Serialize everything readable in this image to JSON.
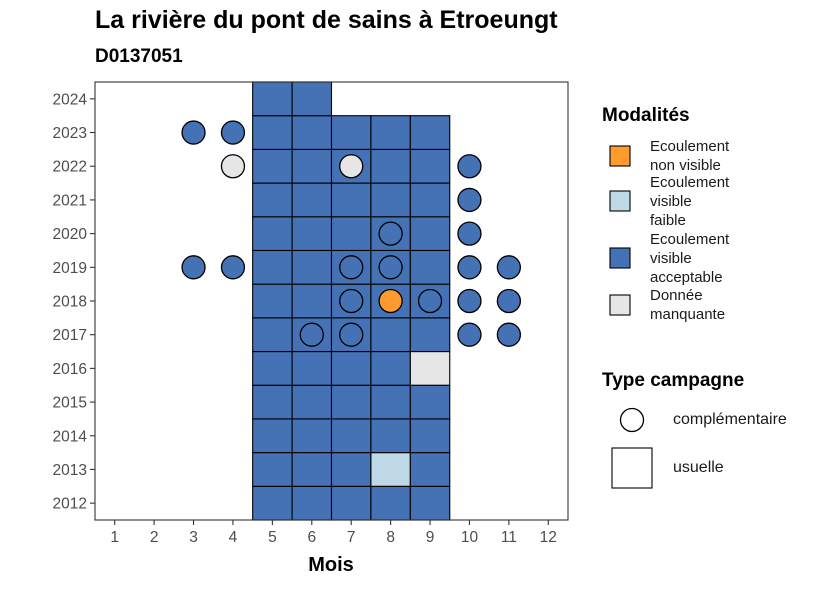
{
  "chart_data": {
    "type": "heatmap",
    "title": "La rivière du pont de sains à Etroeungt",
    "subtitle": "D0137051",
    "xlabel": "Mois",
    "ylabel": "",
    "x_ticks": [
      1,
      2,
      3,
      4,
      5,
      6,
      7,
      8,
      9,
      10,
      11,
      12
    ],
    "y_ticks": [
      2012,
      2013,
      2014,
      2015,
      2016,
      2017,
      2018,
      2019,
      2020,
      2021,
      2022,
      2023,
      2024
    ],
    "xlim": [
      0.5,
      12.5
    ],
    "ylim": [
      2011.5,
      2024.5
    ],
    "grid": false,
    "legend_placement": "right",
    "colors": {
      "non_visible": "#FE9A2E",
      "visible_faible": "#BFD8E5",
      "visible_acceptable": "#4472B4",
      "donnee_manquante": "#E6E6E6"
    },
    "legend_modalites": {
      "title": "Modalités",
      "items": [
        {
          "key": "non_visible",
          "label_lines": [
            "Ecoulement",
            "non visible"
          ]
        },
        {
          "key": "visible_faible",
          "label_lines": [
            "Ecoulement",
            "visible",
            "faible"
          ]
        },
        {
          "key": "visible_acceptable",
          "label_lines": [
            "Ecoulement",
            "visible",
            "acceptable"
          ]
        },
        {
          "key": "donnee_manquante",
          "label_lines": [
            "Donnée",
            "manquante"
          ]
        }
      ]
    },
    "legend_campagne": {
      "title": "Type campagne",
      "items": [
        {
          "shape": "circle",
          "label": "complémentaire"
        },
        {
          "shape": "square",
          "label": "usuelle"
        }
      ]
    },
    "tiles": [
      {
        "year": 2012,
        "month": 5,
        "mod": "visible_acceptable"
      },
      {
        "year": 2012,
        "month": 6,
        "mod": "visible_acceptable"
      },
      {
        "year": 2012,
        "month": 7,
        "mod": "visible_acceptable"
      },
      {
        "year": 2012,
        "month": 8,
        "mod": "visible_acceptable"
      },
      {
        "year": 2012,
        "month": 9,
        "mod": "visible_acceptable"
      },
      {
        "year": 2013,
        "month": 5,
        "mod": "visible_acceptable"
      },
      {
        "year": 2013,
        "month": 6,
        "mod": "visible_acceptable"
      },
      {
        "year": 2013,
        "month": 7,
        "mod": "visible_acceptable"
      },
      {
        "year": 2013,
        "month": 8,
        "mod": "visible_faible"
      },
      {
        "year": 2013,
        "month": 9,
        "mod": "visible_acceptable"
      },
      {
        "year": 2014,
        "month": 5,
        "mod": "visible_acceptable"
      },
      {
        "year": 2014,
        "month": 6,
        "mod": "visible_acceptable"
      },
      {
        "year": 2014,
        "month": 7,
        "mod": "visible_acceptable"
      },
      {
        "year": 2014,
        "month": 8,
        "mod": "visible_acceptable"
      },
      {
        "year": 2014,
        "month": 9,
        "mod": "visible_acceptable"
      },
      {
        "year": 2015,
        "month": 5,
        "mod": "visible_acceptable"
      },
      {
        "year": 2015,
        "month": 6,
        "mod": "visible_acceptable"
      },
      {
        "year": 2015,
        "month": 7,
        "mod": "visible_acceptable"
      },
      {
        "year": 2015,
        "month": 8,
        "mod": "visible_acceptable"
      },
      {
        "year": 2015,
        "month": 9,
        "mod": "visible_acceptable"
      },
      {
        "year": 2016,
        "month": 5,
        "mod": "visible_acceptable"
      },
      {
        "year": 2016,
        "month": 6,
        "mod": "visible_acceptable"
      },
      {
        "year": 2016,
        "month": 7,
        "mod": "visible_acceptable"
      },
      {
        "year": 2016,
        "month": 8,
        "mod": "visible_acceptable"
      },
      {
        "year": 2016,
        "month": 9,
        "mod": "donnee_manquante"
      },
      {
        "year": 2017,
        "month": 5,
        "mod": "visible_acceptable"
      },
      {
        "year": 2017,
        "month": 6,
        "mod": "visible_acceptable"
      },
      {
        "year": 2017,
        "month": 7,
        "mod": "visible_acceptable"
      },
      {
        "year": 2017,
        "month": 8,
        "mod": "visible_acceptable"
      },
      {
        "year": 2017,
        "month": 9,
        "mod": "visible_acceptable"
      },
      {
        "year": 2018,
        "month": 5,
        "mod": "visible_acceptable"
      },
      {
        "year": 2018,
        "month": 6,
        "mod": "visible_acceptable"
      },
      {
        "year": 2018,
        "month": 7,
        "mod": "visible_acceptable"
      },
      {
        "year": 2018,
        "month": 8,
        "mod": "visible_acceptable"
      },
      {
        "year": 2018,
        "month": 9,
        "mod": "visible_acceptable"
      },
      {
        "year": 2019,
        "month": 5,
        "mod": "visible_acceptable"
      },
      {
        "year": 2019,
        "month": 6,
        "mod": "visible_acceptable"
      },
      {
        "year": 2019,
        "month": 7,
        "mod": "visible_acceptable"
      },
      {
        "year": 2019,
        "month": 8,
        "mod": "visible_acceptable"
      },
      {
        "year": 2019,
        "month": 9,
        "mod": "visible_acceptable"
      },
      {
        "year": 2020,
        "month": 5,
        "mod": "visible_acceptable"
      },
      {
        "year": 2020,
        "month": 6,
        "mod": "visible_acceptable"
      },
      {
        "year": 2020,
        "month": 7,
        "mod": "visible_acceptable"
      },
      {
        "year": 2020,
        "month": 8,
        "mod": "visible_acceptable"
      },
      {
        "year": 2020,
        "month": 9,
        "mod": "visible_acceptable"
      },
      {
        "year": 2021,
        "month": 5,
        "mod": "visible_acceptable"
      },
      {
        "year": 2021,
        "month": 6,
        "mod": "visible_acceptable"
      },
      {
        "year": 2021,
        "month": 7,
        "mod": "visible_acceptable"
      },
      {
        "year": 2021,
        "month": 8,
        "mod": "visible_acceptable"
      },
      {
        "year": 2021,
        "month": 9,
        "mod": "visible_acceptable"
      },
      {
        "year": 2022,
        "month": 5,
        "mod": "visible_acceptable"
      },
      {
        "year": 2022,
        "month": 6,
        "mod": "visible_acceptable"
      },
      {
        "year": 2022,
        "month": 7,
        "mod": "visible_acceptable"
      },
      {
        "year": 2022,
        "month": 8,
        "mod": "visible_acceptable"
      },
      {
        "year": 2022,
        "month": 9,
        "mod": "visible_acceptable"
      },
      {
        "year": 2023,
        "month": 5,
        "mod": "visible_acceptable"
      },
      {
        "year": 2023,
        "month": 6,
        "mod": "visible_acceptable"
      },
      {
        "year": 2023,
        "month": 7,
        "mod": "visible_acceptable"
      },
      {
        "year": 2023,
        "month": 8,
        "mod": "visible_acceptable"
      },
      {
        "year": 2023,
        "month": 9,
        "mod": "visible_acceptable"
      },
      {
        "year": 2024,
        "month": 5,
        "mod": "visible_acceptable"
      },
      {
        "year": 2024,
        "month": 6,
        "mod": "visible_acceptable"
      }
    ],
    "points": [
      {
        "year": 2023,
        "month": 3,
        "mod": "visible_acceptable"
      },
      {
        "year": 2023,
        "month": 4,
        "mod": "visible_acceptable"
      },
      {
        "year": 2022,
        "month": 4,
        "mod": "donnee_manquante"
      },
      {
        "year": 2022,
        "month": 7,
        "mod": "donnee_manquante"
      },
      {
        "year": 2022,
        "month": 10,
        "mod": "visible_acceptable"
      },
      {
        "year": 2021,
        "month": 10,
        "mod": "visible_acceptable"
      },
      {
        "year": 2020,
        "month": 8,
        "mod": "visible_acceptable"
      },
      {
        "year": 2020,
        "month": 10,
        "mod": "visible_acceptable"
      },
      {
        "year": 2019,
        "month": 3,
        "mod": "visible_acceptable"
      },
      {
        "year": 2019,
        "month": 4,
        "mod": "visible_acceptable"
      },
      {
        "year": 2019,
        "month": 7,
        "mod": "visible_acceptable"
      },
      {
        "year": 2019,
        "month": 8,
        "mod": "visible_acceptable"
      },
      {
        "year": 2019,
        "month": 10,
        "mod": "visible_acceptable"
      },
      {
        "year": 2019,
        "month": 11,
        "mod": "visible_acceptable"
      },
      {
        "year": 2018,
        "month": 7,
        "mod": "visible_acceptable"
      },
      {
        "year": 2018,
        "month": 8,
        "mod": "non_visible"
      },
      {
        "year": 2018,
        "month": 9,
        "mod": "visible_acceptable"
      },
      {
        "year": 2018,
        "month": 10,
        "mod": "visible_acceptable"
      },
      {
        "year": 2018,
        "month": 11,
        "mod": "visible_acceptable"
      },
      {
        "year": 2017,
        "month": 6,
        "mod": "visible_acceptable"
      },
      {
        "year": 2017,
        "month": 7,
        "mod": "visible_acceptable"
      },
      {
        "year": 2017,
        "month": 10,
        "mod": "visible_acceptable"
      },
      {
        "year": 2017,
        "month": 11,
        "mod": "visible_acceptable"
      }
    ]
  }
}
